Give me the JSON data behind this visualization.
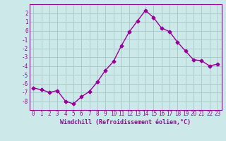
{
  "x": [
    0,
    1,
    2,
    3,
    4,
    5,
    6,
    7,
    8,
    9,
    10,
    11,
    12,
    13,
    14,
    15,
    16,
    17,
    18,
    19,
    20,
    21,
    22,
    23
  ],
  "y": [
    -6.5,
    -6.7,
    -7.0,
    -6.8,
    -8.0,
    -8.3,
    -7.5,
    -6.9,
    -5.8,
    -4.5,
    -3.5,
    -1.7,
    -0.1,
    1.1,
    2.3,
    1.5,
    0.3,
    -0.1,
    -1.3,
    -2.3,
    -3.3,
    -3.4,
    -4.0,
    -3.8
  ],
  "line_color": "#990099",
  "marker": "D",
  "marker_size": 2.5,
  "bg_color": "#cce8e8",
  "grid_color": "#aacccc",
  "xlabel": "Windchill (Refroidissement éolien,°C)",
  "ylim": [
    -9,
    3
  ],
  "xlim": [
    -0.5,
    23.5
  ],
  "yticks": [
    2,
    1,
    0,
    -1,
    -2,
    -3,
    -4,
    -5,
    -6,
    -7,
    -8
  ],
  "xticks": [
    0,
    1,
    2,
    3,
    4,
    5,
    6,
    7,
    8,
    9,
    10,
    11,
    12,
    13,
    14,
    15,
    16,
    17,
    18,
    19,
    20,
    21,
    22,
    23
  ],
  "tick_fontsize": 5.5,
  "xlabel_fontsize": 6.0
}
